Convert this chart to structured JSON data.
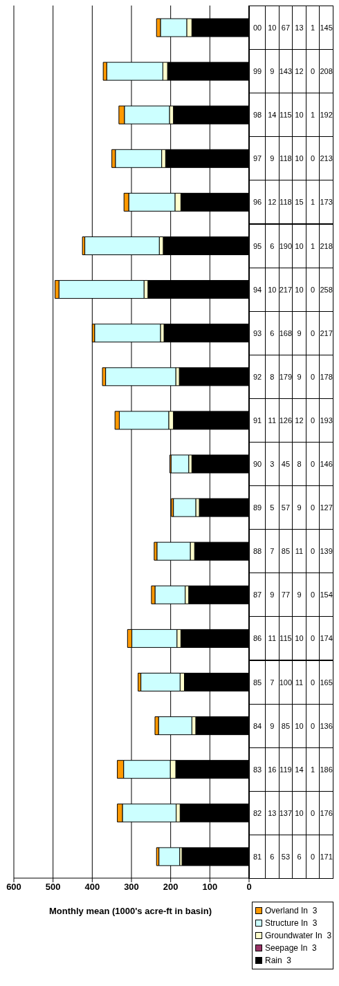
{
  "chart_data": {
    "type": "bar",
    "stacked": true,
    "orientation": "horizontal",
    "xlabel": "Monthly mean (1000's acre-ft in basin)",
    "categories": [
      "00",
      "99",
      "98",
      "97",
      "96",
      "95",
      "94",
      "93",
      "92",
      "91",
      "90",
      "89",
      "88",
      "87",
      "86",
      "85",
      "84",
      "83",
      "82",
      "81"
    ],
    "series": [
      {
        "name": "Rain  3",
        "color": "#000000",
        "values": [
          145,
          208,
          192,
          213,
          173,
          218,
          258,
          217,
          178,
          193,
          146,
          127,
          139,
          154,
          174,
          165,
          136,
          186,
          176,
          171
        ]
      },
      {
        "name": "Seepage In  3",
        "color": "#993366",
        "values": [
          1,
          0,
          1,
          0,
          1,
          1,
          0,
          0,
          0,
          0,
          0,
          0,
          0,
          0,
          0,
          0,
          0,
          1,
          0,
          0
        ]
      },
      {
        "name": "Groundwater In  3",
        "color": "#ffffcc",
        "values": [
          13,
          12,
          10,
          10,
          15,
          10,
          10,
          9,
          9,
          12,
          8,
          9,
          11,
          9,
          10,
          11,
          10,
          14,
          10,
          6
        ]
      },
      {
        "name": "Structure In  3",
        "color": "#ccffff",
        "values": [
          67,
          143,
          115,
          118,
          118,
          190,
          217,
          168,
          179,
          126,
          45,
          57,
          85,
          77,
          115,
          100,
          85,
          119,
          137,
          53
        ]
      },
      {
        "name": "Overland In  3",
        "color": "#ff9900",
        "values": [
          10,
          9,
          14,
          9,
          12,
          6,
          10,
          6,
          8,
          11,
          3,
          5,
          7,
          9,
          11,
          7,
          9,
          16,
          13,
          6
        ]
      }
    ],
    "xlim": [
      600,
      0
    ],
    "xticks": [
      600,
      500,
      400,
      300,
      200,
      100,
      0
    ],
    "grid": "x",
    "legend": "bottom right",
    "data_labels": true
  }
}
